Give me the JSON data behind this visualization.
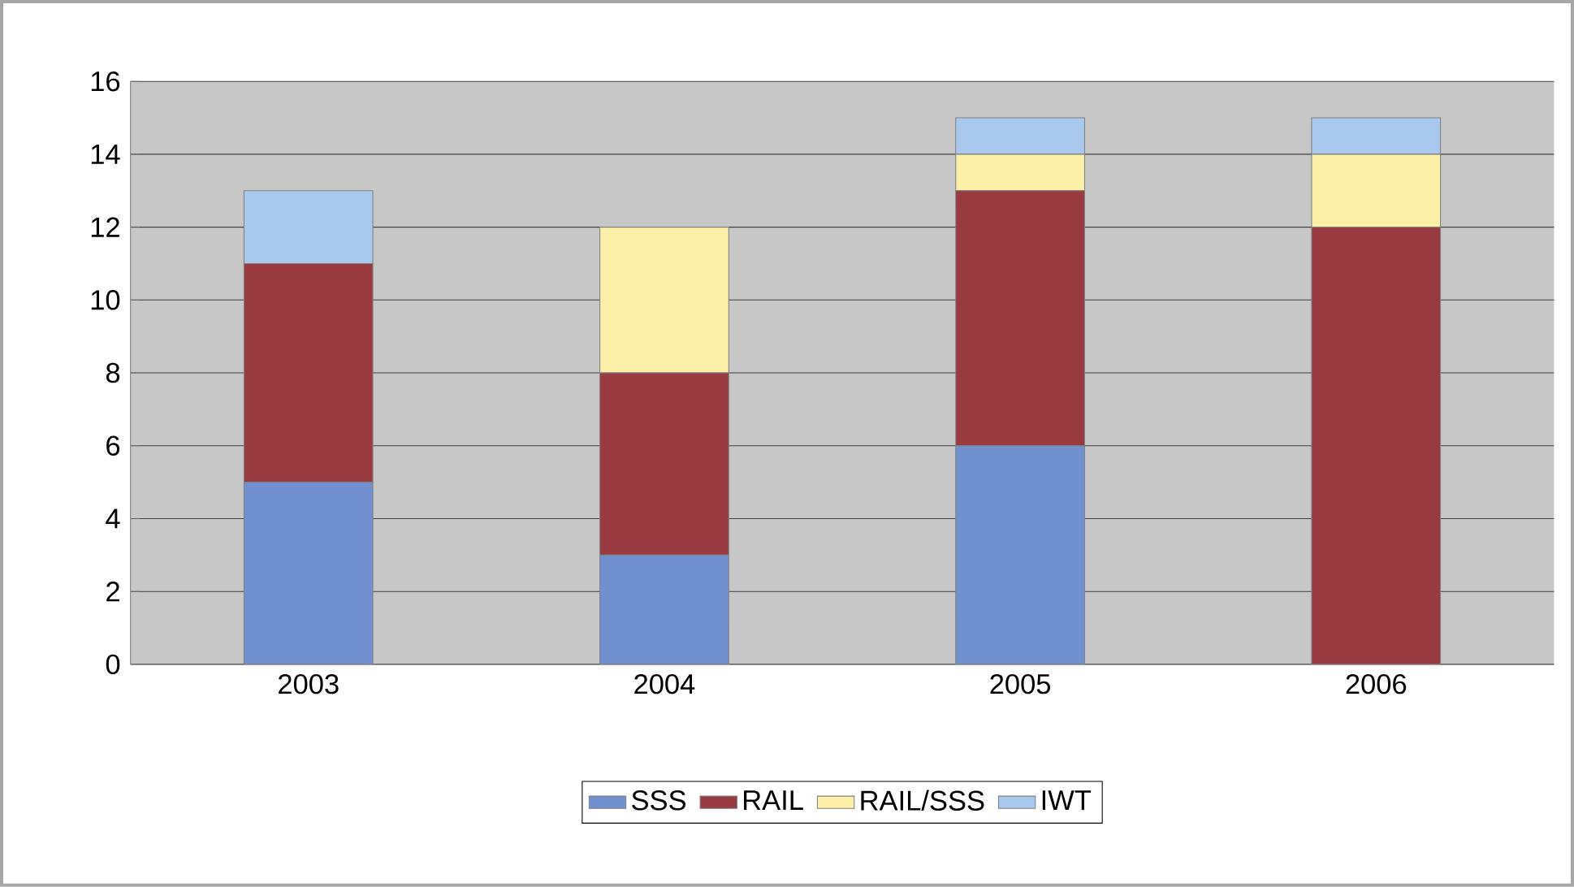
{
  "chart_data": {
    "type": "bar",
    "stacked": true,
    "categories": [
      "2003",
      "2004",
      "2005",
      "2006"
    ],
    "series": [
      {
        "name": "SSS",
        "color": "#7090d0",
        "values": [
          5,
          3,
          6,
          0
        ]
      },
      {
        "name": "RAIL",
        "color": "#983a40",
        "values": [
          6,
          5,
          7,
          12
        ]
      },
      {
        "name": "RAIL/SSS",
        "color": "#fcf0a8",
        "values": [
          0,
          4,
          1,
          2
        ]
      },
      {
        "name": "IWT",
        "color": "#a8c8ee",
        "values": [
          2,
          0,
          1,
          1
        ]
      }
    ],
    "ylim": [
      0,
      16
    ],
    "yticks": [
      0,
      2,
      4,
      6,
      8,
      10,
      12,
      14,
      16
    ],
    "grid": "y",
    "legend": "bottom"
  }
}
